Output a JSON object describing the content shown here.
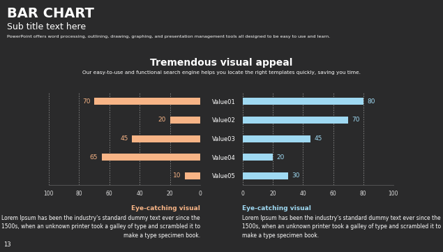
{
  "slide": {
    "title": "BAR CHART",
    "subtitle": "Sub title text here",
    "description": "PowerPoint offers word processing, outlining, drawing, graphing, and presentation management tools all designed to be easy to use and learn.",
    "heading": "Tremendous visual appeal",
    "heading_text": "Our easy-to-use and functional search engine helps you locate the right templates quickly, saving you time.",
    "captions": [
      {
        "title": "Eye-catching visual",
        "text": "Lorem Ipsum has been the industry's standard dummy text ever since the 1500s, when an unknown printer took a galley of type and scrambled it to make a type specimen book."
      },
      {
        "title": "Eye-catching visual",
        "text": "Lorem Ipsum has been the industry's standard dummy text ever since the 1500s, when an unknown printer took a galley of type and scrambled it to make a type specimen book."
      }
    ],
    "page_number": "13"
  },
  "chart_data": [
    {
      "type": "bar",
      "orientation": "horizontal",
      "categories": [
        "Value01",
        "Value02",
        "Value03",
        "Value04",
        "Value05"
      ],
      "values": [
        70,
        20,
        45,
        65,
        10
      ],
      "color": "#f7b486",
      "xlim": [
        100,
        0
      ],
      "xticks": [
        100,
        80,
        60,
        40,
        20,
        0
      ],
      "grid": true,
      "data_labels": true,
      "tick_labels": true
    },
    {
      "type": "bar",
      "orientation": "horizontal",
      "categories": [
        "Value01",
        "Value02",
        "Value03",
        "Value04",
        "Value05"
      ],
      "values": [
        80,
        70,
        45,
        20,
        30
      ],
      "color": "#9fd9f2",
      "xlim": [
        0,
        100
      ],
      "xticks": [
        0,
        20,
        40,
        60,
        80,
        100
      ],
      "grid": true,
      "data_labels": true,
      "tick_labels": "x"
    }
  ]
}
